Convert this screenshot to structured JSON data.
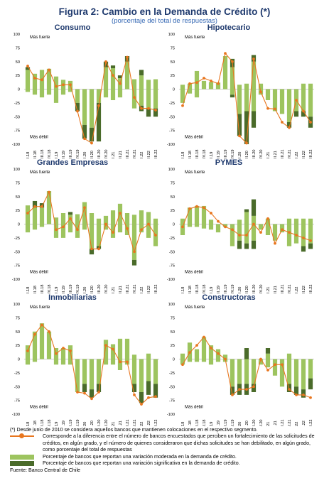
{
  "figure": {
    "title": "Figura 2: Cambio en la Demanda de Crédito (*)",
    "subtitle": "(porcentaje del total de respuestas)",
    "footnote": "(*) Desde junio de 2010 se considera aquellos bancos que mantienen colocaciones en el respectivo segmento.",
    "legend": {
      "line": "Corresponde a la diferencia entre el número de bancos encuestados que perciben un fortalecimiento de las solicitudes de créditos, en algún grado, y el número de quienes consideraron que dichas solicitudes se han debilitado, en algún grado, como porcentaje del total de respuestas",
      "moderate": "Porcentaje de bancos que reportan una variación moderada en la demanda de crédito.",
      "significant": "Porcentaje de bancos que reportan una variación significativa en la demanda de crédito."
    },
    "source": "Fuente: Banco Central de Chile",
    "colors": {
      "moderate": "#9dc45f",
      "significant": "#4a6b2a",
      "line": "#e8761f"
    }
  },
  "axis": {
    "annotation_top": "Más fuerte",
    "annotation_bottom": "Más débil",
    "yticks": [
      100,
      75,
      50,
      25,
      0,
      -25,
      -50,
      -75,
      -100
    ],
    "ylim": [
      -100,
      100
    ],
    "categories": [
      "I.18",
      "II.18",
      "III.18",
      "IV.18",
      "I.19",
      "II.19",
      "III.19",
      "IV.19",
      "I.20",
      "II.20",
      "III.20",
      "IV.20",
      "I.21",
      "II.21",
      "III.21",
      "IV.21",
      "I.22",
      "II.22",
      "III.22"
    ]
  },
  "chart_data": [
    {
      "type": "bar",
      "title": "Consumo",
      "series": [
        {
          "name": "moderate_pos",
          "values": [
            35,
            28,
            35,
            37,
            23,
            17,
            15,
            0,
            0,
            0,
            0,
            40,
            38,
            20,
            50,
            18,
            25,
            17,
            18
          ]
        },
        {
          "name": "significant_pos",
          "values": [
            5,
            0,
            0,
            0,
            0,
            0,
            0,
            0,
            0,
            0,
            0,
            10,
            5,
            5,
            10,
            0,
            10,
            0,
            0
          ]
        },
        {
          "name": "moderate_neg",
          "values": [
            -5,
            -10,
            -15,
            -10,
            -25,
            -10,
            -5,
            -25,
            -65,
            -70,
            -25,
            -15,
            -20,
            -15,
            0,
            -35,
            -30,
            -35,
            -35
          ]
        },
        {
          "name": "significant_neg",
          "values": [
            0,
            0,
            0,
            0,
            0,
            0,
            0,
            -15,
            -25,
            -25,
            -70,
            0,
            0,
            0,
            0,
            0,
            -10,
            -15,
            -15
          ]
        },
        {
          "name": "net",
          "values": [
            42,
            20,
            17,
            35,
            5,
            8,
            8,
            -40,
            -90,
            -98,
            -30,
            50,
            25,
            10,
            58,
            -15,
            -35,
            -35,
            -38
          ]
        }
      ]
    },
    {
      "type": "bar",
      "title": "Hipotecario",
      "series": [
        {
          "name": "moderate_pos",
          "values": [
            8,
            10,
            33,
            15,
            13,
            12,
            60,
            40,
            8,
            10,
            50,
            10,
            0,
            0,
            0,
            0,
            0,
            10,
            10
          ]
        },
        {
          "name": "significant_pos",
          "values": [
            0,
            0,
            0,
            0,
            0,
            0,
            0,
            15,
            0,
            0,
            12,
            0,
            0,
            0,
            0,
            0,
            0,
            0,
            0
          ]
        },
        {
          "name": "moderate_neg",
          "values": [
            -25,
            -8,
            -15,
            0,
            0,
            0,
            0,
            -10,
            -45,
            -40,
            -40,
            -10,
            -20,
            -40,
            -45,
            -60,
            -40,
            -40,
            -50
          ]
        },
        {
          "name": "significant_neg",
          "values": [
            0,
            0,
            0,
            0,
            0,
            0,
            0,
            -5,
            -40,
            -60,
            -30,
            0,
            0,
            0,
            0,
            -10,
            -10,
            -10,
            -20
          ]
        },
        {
          "name": "net",
          "values": [
            -30,
            10,
            12,
            20,
            15,
            10,
            65,
            50,
            -85,
            -98,
            55,
            -5,
            -35,
            -36,
            -60,
            -70,
            -20,
            -40,
            -60
          ]
        }
      ]
    },
    {
      "type": "bar",
      "title": "Grandes Empresas",
      "series": [
        {
          "name": "moderate_pos",
          "values": [
            34,
            30,
            30,
            60,
            12,
            20,
            17,
            18,
            40,
            20,
            10,
            15,
            25,
            37,
            20,
            17,
            25,
            22,
            10
          ]
        },
        {
          "name": "significant_pos",
          "values": [
            0,
            12,
            8,
            0,
            0,
            0,
            5,
            0,
            0,
            0,
            0,
            0,
            0,
            0,
            0,
            0,
            0,
            0,
            0
          ]
        },
        {
          "name": "moderate_neg",
          "values": [
            -15,
            -10,
            -5,
            0,
            -25,
            -25,
            -15,
            -25,
            -10,
            -45,
            -40,
            -10,
            -25,
            -15,
            -20,
            -65,
            -15,
            -25,
            -40
          ]
        },
        {
          "name": "significant_neg",
          "values": [
            0,
            0,
            0,
            0,
            0,
            0,
            0,
            0,
            0,
            -10,
            -5,
            0,
            0,
            0,
            0,
            -10,
            0,
            0,
            0
          ]
        },
        {
          "name": "net",
          "values": [
            20,
            32,
            32,
            58,
            -10,
            -5,
            10,
            -10,
            30,
            -45,
            -45,
            0,
            -15,
            20,
            -8,
            -50,
            -10,
            0,
            -20
          ]
        }
      ]
    },
    {
      "type": "bar",
      "title": "PYMES",
      "series": [
        {
          "name": "moderate_pos",
          "values": [
            10,
            30,
            33,
            33,
            8,
            0,
            0,
            0,
            8,
            22,
            15,
            0,
            10,
            0,
            0,
            10,
            10,
            10,
            10
          ]
        },
        {
          "name": "significant_pos",
          "values": [
            0,
            0,
            0,
            0,
            0,
            0,
            0,
            0,
            0,
            5,
            30,
            0,
            0,
            0,
            0,
            0,
            0,
            0,
            0
          ]
        },
        {
          "name": "moderate_neg",
          "values": [
            -20,
            -5,
            -5,
            -8,
            -10,
            -15,
            -5,
            -40,
            -30,
            -35,
            -30,
            -10,
            -20,
            -30,
            -15,
            -40,
            -35,
            -40,
            -35
          ]
        },
        {
          "name": "significant_neg",
          "values": [
            0,
            0,
            0,
            0,
            0,
            0,
            0,
            0,
            -15,
            -10,
            -15,
            0,
            0,
            0,
            0,
            0,
            0,
            -10,
            -10
          ]
        },
        {
          "name": "net",
          "values": [
            -5,
            28,
            32,
            30,
            20,
            5,
            -5,
            -10,
            -20,
            -20,
            0,
            -15,
            10,
            -35,
            -10,
            -15,
            -20,
            -25,
            -30
          ]
        }
      ]
    },
    {
      "type": "bar",
      "title": "Inmobiliarias",
      "series": [
        {
          "name": "moderate_pos",
          "values": [
            25,
            50,
            65,
            50,
            20,
            20,
            25,
            0,
            0,
            0,
            0,
            35,
            27,
            37,
            37,
            8,
            0,
            10,
            0
          ]
        },
        {
          "name": "significant_pos",
          "values": [
            0,
            0,
            0,
            0,
            0,
            0,
            0,
            0,
            0,
            0,
            0,
            0,
            0,
            0,
            0,
            0,
            0,
            0,
            0
          ]
        },
        {
          "name": "moderate_neg",
          "values": [
            -10,
            -5,
            0,
            0,
            -10,
            -10,
            -10,
            -60,
            -45,
            -55,
            -45,
            -10,
            -10,
            -20,
            -10,
            -45,
            -60,
            -40,
            -45
          ]
        },
        {
          "name": "significant_neg",
          "values": [
            0,
            0,
            0,
            0,
            0,
            0,
            0,
            0,
            -15,
            -15,
            -15,
            0,
            0,
            0,
            0,
            -15,
            -20,
            -25,
            -25
          ]
        },
        {
          "name": "net",
          "values": [
            15,
            45,
            62,
            50,
            10,
            20,
            15,
            -60,
            -62,
            -72,
            -60,
            25,
            18,
            -5,
            -5,
            -65,
            -82,
            -70,
            -68
          ]
        }
      ]
    },
    {
      "type": "bar",
      "title": "Constructoras",
      "series": [
        {
          "name": "moderate_pos",
          "values": [
            10,
            30,
            18,
            40,
            25,
            18,
            8,
            0,
            0,
            0,
            0,
            0,
            10,
            0,
            0,
            10,
            0,
            0,
            0
          ]
        },
        {
          "name": "significant_pos",
          "values": [
            0,
            0,
            0,
            0,
            0,
            0,
            0,
            0,
            0,
            20,
            0,
            0,
            10,
            0,
            0,
            0,
            0,
            0,
            0
          ]
        },
        {
          "name": "moderate_neg",
          "values": [
            -10,
            -5,
            -5,
            -5,
            -10,
            -5,
            -5,
            -50,
            -45,
            -45,
            -45,
            -10,
            -15,
            -30,
            -50,
            -45,
            -50,
            -55,
            -35
          ]
        },
        {
          "name": "significant_neg",
          "values": [
            0,
            0,
            0,
            0,
            0,
            0,
            0,
            -15,
            -20,
            -20,
            -15,
            0,
            0,
            0,
            0,
            -15,
            -15,
            -15,
            -20
          ]
        },
        {
          "name": "net",
          "values": [
            -10,
            12,
            25,
            40,
            20,
            10,
            0,
            -65,
            -55,
            -55,
            -50,
            0,
            -20,
            -10,
            -10,
            -55,
            -65,
            -65,
            -70
          ]
        }
      ]
    }
  ]
}
